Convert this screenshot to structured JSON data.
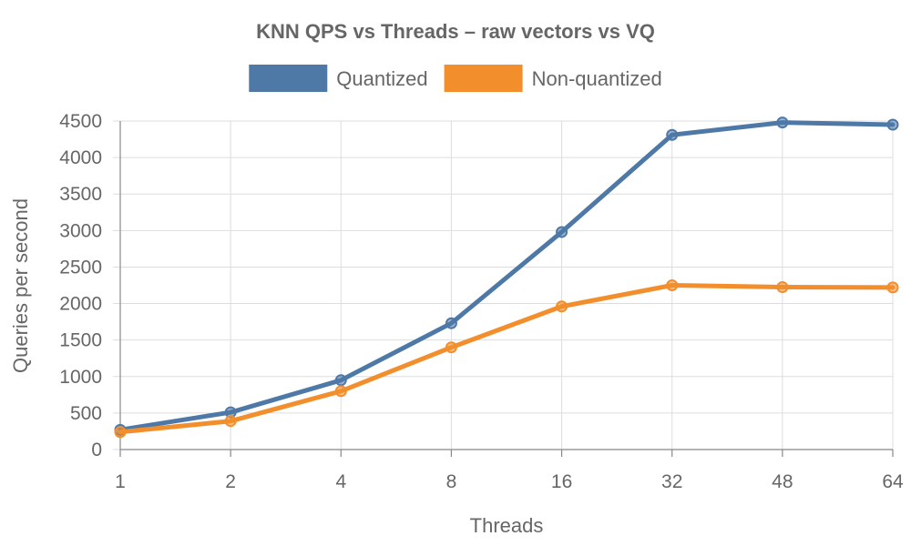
{
  "chart_data": {
    "type": "line",
    "title": "KNN QPS vs Threads – raw vectors vs VQ",
    "xlabel": "Threads",
    "ylabel": "Queries per second",
    "categories": [
      "1",
      "2",
      "4",
      "8",
      "16",
      "32",
      "48",
      "64"
    ],
    "ylim": [
      0,
      4500
    ],
    "yticks": [
      0,
      500,
      1000,
      1500,
      2000,
      2500,
      3000,
      3500,
      4000,
      4500
    ],
    "grid": true,
    "legend_position": "top",
    "series": [
      {
        "name": "Quantized",
        "color": "#4e79a7",
        "values": [
          270,
          510,
          950,
          1730,
          2980,
          4310,
          4480,
          4450
        ]
      },
      {
        "name": "Non-quantized",
        "color": "#f28e2b",
        "values": [
          240,
          390,
          800,
          1400,
          1960,
          2250,
          2225,
          2220
        ]
      }
    ]
  }
}
